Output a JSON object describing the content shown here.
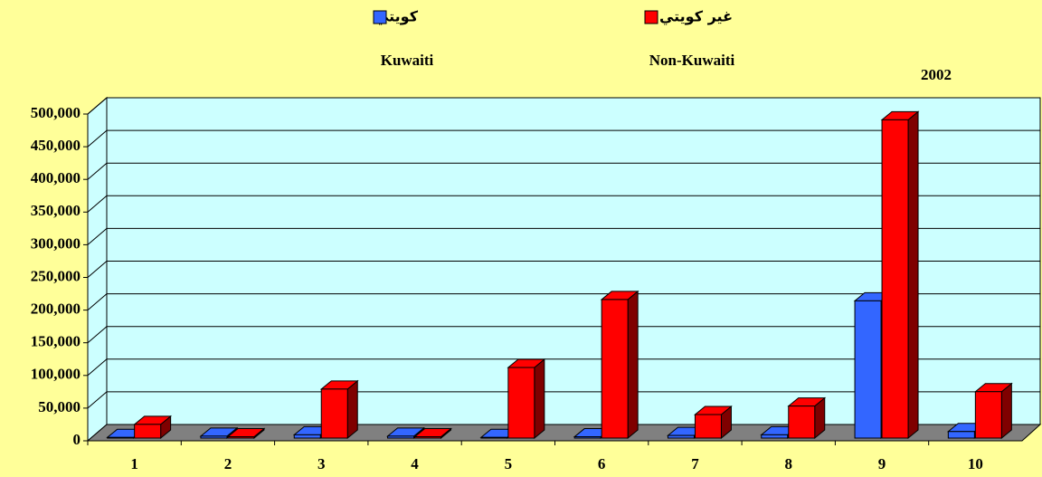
{
  "chart_data": {
    "type": "bar3d",
    "categories": [
      "1",
      "2",
      "3",
      "4",
      "5",
      "6",
      "7",
      "8",
      "9",
      "10"
    ],
    "series": [
      {
        "name": "كويتي",
        "color": "#3366ff",
        "values": [
          1000,
          3000,
          5000,
          3000,
          1000,
          2000,
          4000,
          5000,
          210000,
          10000
        ]
      },
      {
        "name": "غير كويتي",
        "color": "#ff0000",
        "values": [
          21000,
          2000,
          75000,
          2000,
          108000,
          212000,
          36000,
          49000,
          487000,
          71000
        ]
      }
    ],
    "annotations": [
      "Kuwaiti",
      "Non-Kuwaiti",
      "2002"
    ],
    "ylim": [
      0,
      500000
    ],
    "yticks": [
      0,
      {
        "value": 50000,
        "label": "50,000"
      },
      {
        "value": 100000,
        "label": "100,000"
      },
      {
        "value": 150000,
        "label": "150,000"
      },
      {
        "value": 200000,
        "label": "200,000"
      },
      {
        "value": 250000,
        "label": "250,000"
      },
      {
        "value": 300000,
        "label": "300,000"
      },
      {
        "value": 350000,
        "label": "350,000"
      },
      {
        "value": 400000,
        "label": "400,000"
      },
      {
        "value": 450000,
        "label": "450,000"
      },
      {
        "value": 500000,
        "label": "500,000"
      }
    ],
    "grid": true
  }
}
